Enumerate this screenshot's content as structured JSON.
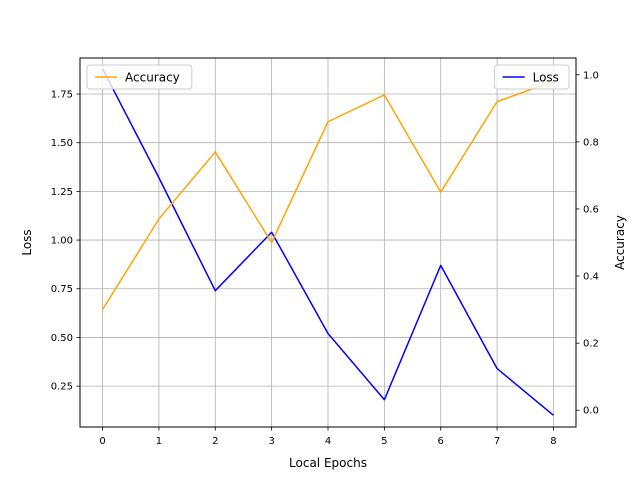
{
  "chart_data": {
    "type": "line",
    "xlabel": "Local Epochs",
    "x": [
      0,
      1,
      2,
      3,
      4,
      5,
      6,
      7,
      8
    ],
    "xlim": [
      -0.4,
      8.4
    ],
    "xticks": [
      0,
      1,
      2,
      3,
      4,
      5,
      6,
      7,
      8
    ],
    "grid": true,
    "left_axis": {
      "label": "Loss",
      "ylim": [
        0.04,
        1.935
      ],
      "ticks": [
        "0.25",
        "0.50",
        "0.75",
        "1.00",
        "1.25",
        "1.50",
        "1.75"
      ]
    },
    "right_axis": {
      "label": "Accuracy",
      "ylim": [
        -0.05,
        1.05
      ],
      "ticks": [
        "0.0",
        "0.2",
        "0.4",
        "0.6",
        "0.8",
        "1.0"
      ]
    },
    "series": [
      {
        "name": "Loss",
        "axis": "left",
        "color": "#0000ff",
        "values": [
          1.88,
          1.32,
          0.74,
          1.04,
          0.52,
          0.18,
          0.87,
          0.34,
          0.1
        ],
        "legend_position": "upper right"
      },
      {
        "name": "Accuracy",
        "axis": "right",
        "color": "#ffa500",
        "values": [
          0.3,
          0.57,
          0.77,
          0.5,
          0.86,
          0.94,
          0.65,
          0.92,
          0.98
        ],
        "legend_position": "upper left"
      }
    ]
  }
}
